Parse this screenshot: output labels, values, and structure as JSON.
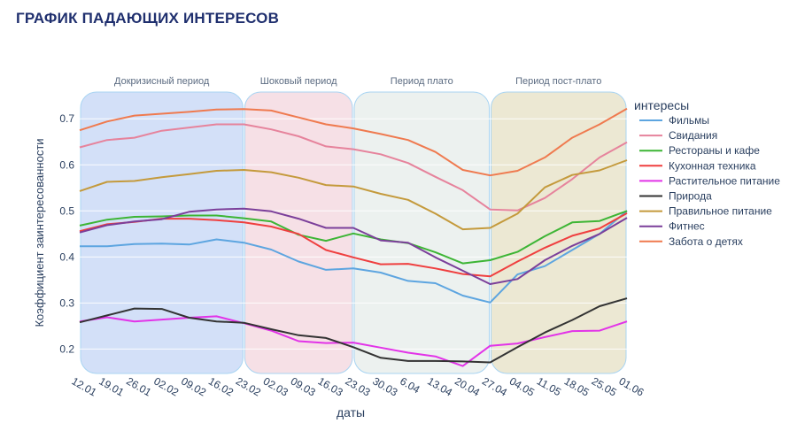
{
  "page": {
    "title": "ГРАФИК ПАДАЮЩИХ ИНТЕРЕСОВ"
  },
  "chart_data": {
    "type": "line",
    "title": "ГРАФИК ПАДАЮЩИХ ИНТЕРЕСОВ",
    "xlabel": "даты",
    "ylabel": "Коэффициент заинтересованности",
    "ylim": [
      0.145,
      0.76
    ],
    "yticks": [
      "0.2",
      "0.3",
      "0.4",
      "0.5",
      "0.6",
      "0.7"
    ],
    "ytick_values": [
      0.2,
      0.3,
      0.4,
      0.5,
      0.6,
      0.7
    ],
    "grid": true,
    "legend_title": "интересы",
    "legend_position": "right",
    "x": [
      "12.01",
      "19.01",
      "26.01",
      "02.02",
      "09.02",
      "16.02",
      "23.02",
      "02.03",
      "09.03",
      "16.03",
      "23.03",
      "30.03",
      "6.04",
      "13.04",
      "20.04",
      "27.04",
      "04.05",
      "11.05",
      "18.05",
      "25.05",
      "01.06"
    ],
    "periods": [
      {
        "label": "Докризисный период",
        "start": 0,
        "end": 6,
        "color": "#aec7f2"
      },
      {
        "label": "Шоковый период",
        "start": 6,
        "end": 10,
        "color": "#eec6d2"
      },
      {
        "label": "Период плато",
        "start": 10,
        "end": 15,
        "color": "#dde6e2"
      },
      {
        "label": "Период пост-плато",
        "start": 15,
        "end": 20,
        "color": "#ddd6ae"
      }
    ],
    "series": [
      {
        "name": "Фильмы",
        "color": "#5da5e0",
        "values": [
          0.423,
          0.423,
          0.428,
          0.429,
          0.427,
          0.438,
          0.431,
          0.416,
          0.39,
          0.372,
          0.375,
          0.366,
          0.348,
          0.343,
          0.316,
          0.301,
          0.362,
          0.38,
          0.415,
          0.45,
          0.5
        ]
      },
      {
        "name": "Свидания",
        "color": "#e6839c",
        "values": [
          0.638,
          0.654,
          0.659,
          0.674,
          0.681,
          0.688,
          0.688,
          0.677,
          0.662,
          0.64,
          0.634,
          0.623,
          0.604,
          0.574,
          0.545,
          0.503,
          0.501,
          0.528,
          0.569,
          0.616,
          0.649
        ]
      },
      {
        "name": "Рестораны и кафе",
        "color": "#3db535",
        "values": [
          0.468,
          0.481,
          0.487,
          0.488,
          0.49,
          0.49,
          0.484,
          0.477,
          0.448,
          0.435,
          0.451,
          0.438,
          0.43,
          0.41,
          0.386,
          0.393,
          0.411,
          0.445,
          0.475,
          0.478,
          0.5
        ]
      },
      {
        "name": "Кухонная техника",
        "color": "#ef3f3f",
        "values": [
          0.456,
          0.471,
          0.476,
          0.483,
          0.483,
          0.48,
          0.475,
          0.466,
          0.45,
          0.415,
          0.399,
          0.384,
          0.385,
          0.375,
          0.363,
          0.358,
          0.39,
          0.42,
          0.446,
          0.462,
          0.495
        ]
      },
      {
        "name": "Растительное питание",
        "color": "#e233e8",
        "values": [
          0.26,
          0.269,
          0.26,
          0.264,
          0.268,
          0.271,
          0.256,
          0.24,
          0.217,
          0.213,
          0.214,
          0.203,
          0.192,
          0.184,
          0.163,
          0.207,
          0.212,
          0.226,
          0.239,
          0.24,
          0.26
        ]
      },
      {
        "name": "Природа",
        "color": "#333333",
        "values": [
          0.258,
          0.273,
          0.288,
          0.287,
          0.268,
          0.26,
          0.257,
          0.243,
          0.23,
          0.224,
          0.204,
          0.181,
          0.174,
          0.174,
          0.173,
          0.171,
          0.204,
          0.236,
          0.263,
          0.293,
          0.31
        ]
      },
      {
        "name": "Правильное питание",
        "color": "#c49a3c",
        "values": [
          0.543,
          0.563,
          0.565,
          0.573,
          0.58,
          0.587,
          0.589,
          0.584,
          0.572,
          0.556,
          0.553,
          0.537,
          0.524,
          0.494,
          0.46,
          0.463,
          0.494,
          0.551,
          0.578,
          0.588,
          0.61
        ]
      },
      {
        "name": "Фитнес",
        "color": "#7b3f9a",
        "values": [
          0.453,
          0.469,
          0.477,
          0.482,
          0.498,
          0.503,
          0.505,
          0.499,
          0.483,
          0.463,
          0.463,
          0.436,
          0.431,
          0.399,
          0.37,
          0.341,
          0.352,
          0.393,
          0.424,
          0.45,
          0.485
        ]
      },
      {
        "name": "Забота о детях",
        "color": "#ef7a4f",
        "values": [
          0.675,
          0.694,
          0.707,
          0.711,
          0.715,
          0.72,
          0.721,
          0.718,
          0.703,
          0.688,
          0.679,
          0.667,
          0.654,
          0.628,
          0.589,
          0.577,
          0.587,
          0.616,
          0.659,
          0.688,
          0.722
        ]
      }
    ]
  }
}
